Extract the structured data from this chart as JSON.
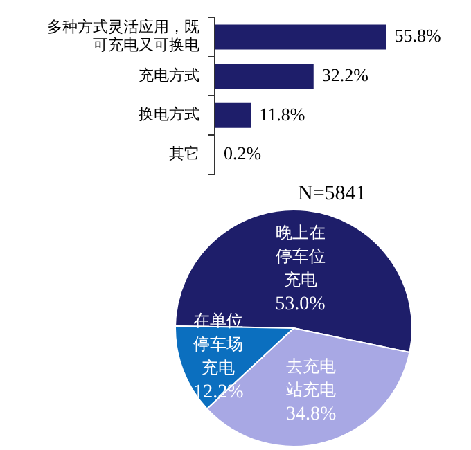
{
  "chart_data": [
    {
      "type": "bar",
      "orientation": "horizontal",
      "categories": [
        "多种方式灵活应用，既可充电又可换电",
        "充电方式",
        "换电方式",
        "其它"
      ],
      "values": [
        55.8,
        32.2,
        11.8,
        0.2
      ],
      "color": "#1e1e6a",
      "value_labels": [
        "55.8%",
        "32.2%",
        "11.8%",
        "0.2%"
      ],
      "legend": false,
      "tick_labels": "y"
    },
    {
      "type": "pie",
      "categories": [
        "晚上在停车位充电",
        "去充电站充电",
        "在单位停车场充电"
      ],
      "values": [
        53.0,
        34.8,
        12.2
      ],
      "colors": [
        "#1e1e6a",
        "#a8a8e4",
        "#0b6fbf"
      ],
      "value_labels": [
        "53.0%",
        "34.8%",
        "12.2%"
      ],
      "annotations": [
        "N=5841"
      ],
      "legend": false
    }
  ]
}
